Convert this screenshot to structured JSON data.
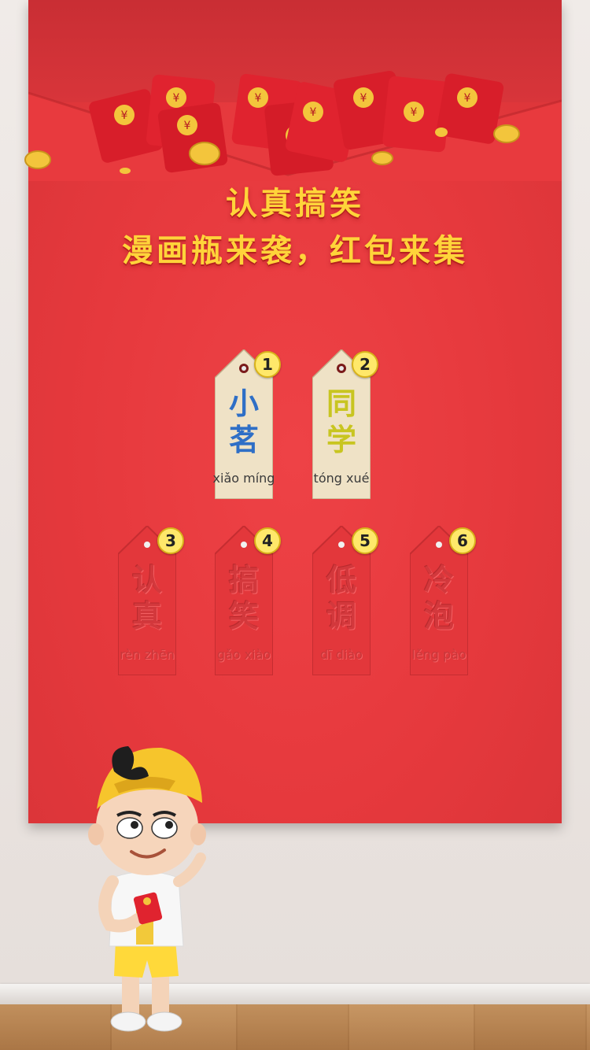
{
  "headline": {
    "line1": "认真搞笑",
    "line2": "漫画瓶来袭，红包来集"
  },
  "tags": [
    {
      "num": "1",
      "chars": [
        "小",
        "茗"
      ],
      "pinyin": "xiǎo míng",
      "color": "#2f6fc6",
      "unlocked": true
    },
    {
      "num": "2",
      "chars": [
        "同",
        "学"
      ],
      "pinyin": "tóng xué",
      "color": "#c8c520",
      "unlocked": true
    },
    {
      "num": "3",
      "chars": [
        "认",
        "真"
      ],
      "pinyin": "rèn zhēn",
      "unlocked": false
    },
    {
      "num": "4",
      "chars": [
        "搞",
        "笑"
      ],
      "pinyin": "gǎo xiào",
      "unlocked": false
    },
    {
      "num": "5",
      "chars": [
        "低",
        "调"
      ],
      "pinyin": "dī diào",
      "unlocked": false
    },
    {
      "num": "6",
      "chars": [
        "冷",
        "泡"
      ],
      "pinyin": "lěng pào",
      "unlocked": false
    }
  ],
  "colors": {
    "poster": "#e6393d",
    "headline": "#ffd43a",
    "envelope": "#d81e2a",
    "coin": "#f3c53c",
    "tag_paper": "#efe2c6",
    "badge": "#ffe86a"
  },
  "icons": {
    "envelope": "red-envelope-icon",
    "coin": "gold-coin-icon",
    "yuan_symbol": "¥"
  }
}
